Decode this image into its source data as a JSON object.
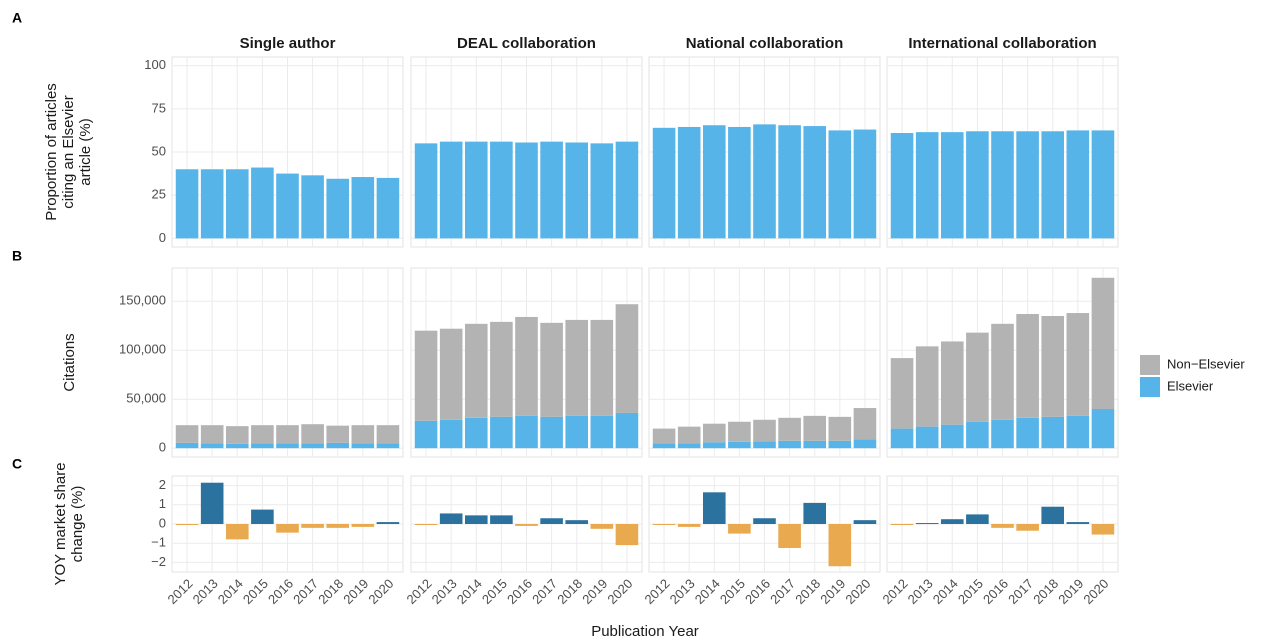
{
  "chart_data": [
    {
      "type": "bar",
      "panel": "A",
      "ylabel": [
        "Proportion of articles",
        "citing an Elsevier",
        "article (%)"
      ],
      "facet_titles": [
        "Single author",
        "DEAL collaboration",
        "National collaboration",
        "International collaboration"
      ],
      "color": "#56b4e9",
      "ylim": [
        -5,
        105
      ],
      "yticks": [
        0,
        25,
        50,
        75,
        100
      ],
      "grid": true,
      "facets": [
        {
          "values": [
            40,
            40,
            40,
            41,
            37.5,
            36.5,
            34.5,
            35.5,
            35
          ]
        },
        {
          "values": [
            55,
            56,
            56,
            56,
            55.5,
            56,
            55.5,
            55,
            56
          ]
        },
        {
          "values": [
            64,
            64.5,
            65.5,
            64.5,
            66,
            65.5,
            65,
            62.5,
            63
          ]
        },
        {
          "values": [
            61,
            61.5,
            61.5,
            62,
            62,
            62,
            62,
            62.5,
            62.5
          ]
        }
      ]
    },
    {
      "type": "stacked",
      "panel": "B",
      "ylabel": [
        "Citations"
      ],
      "ylim": [
        -9000,
        184000
      ],
      "grid": true,
      "yticks": [
        0,
        {
          "value": 50000,
          "label": "50,000"
        },
        {
          "value": 100000,
          "label": "100,000"
        },
        {
          "value": 150000,
          "label": "150,000"
        }
      ],
      "legend_names": [
        "Non−Elsevier",
        "Elsevier"
      ],
      "legend_colors": [
        "#b3b3b3",
        "#56b4e9"
      ],
      "facets": [
        {
          "series": [
            {
              "values": [
                18000,
                18500,
                18000,
                18500,
                18500,
                19500,
                17500,
                18500,
                18500
              ]
            },
            {
              "values": [
                5500,
                5000,
                4500,
                5000,
                5000,
                5000,
                5500,
                5000,
                5000
              ]
            }
          ]
        },
        {
          "series": [
            {
              "values": [
                92000,
                93000,
                96000,
                97000,
                101000,
                96000,
                98000,
                98000,
                111000
              ]
            },
            {
              "values": [
                28000,
                29000,
                31000,
                32000,
                33000,
                32000,
                33000,
                33000,
                36000
              ]
            }
          ]
        },
        {
          "series": [
            {
              "values": [
                15000,
                17000,
                19000,
                20500,
                22000,
                23500,
                25500,
                24500,
                32000
              ]
            },
            {
              "values": [
                5000,
                5000,
                6000,
                6500,
                7000,
                7500,
                7500,
                7500,
                9000
              ]
            }
          ]
        },
        {
          "series": [
            {
              "values": [
                72000,
                82000,
                85000,
                91000,
                98000,
                106000,
                103000,
                105000,
                134000
              ]
            },
            {
              "values": [
                20000,
                22000,
                24000,
                27000,
                29000,
                31000,
                32000,
                33000,
                40000
              ]
            }
          ]
        }
      ]
    },
    {
      "type": "diverging",
      "panel": "C",
      "ylabel": [
        "YOY market share",
        "change (%)"
      ],
      "xlabel": "Publication Year",
      "categories": [
        "2012",
        "2013",
        "2014",
        "2015",
        "2016",
        "2017",
        "2018",
        "2019",
        "2020"
      ],
      "positive_color": "#2c729e",
      "negative_color": "#e9a94f",
      "ylim": [
        -2.5,
        2.5
      ],
      "grid": true,
      "yticks": [
        {
          "value": -2,
          "label": "−2"
        },
        {
          "value": -1,
          "label": "−1"
        },
        0,
        1,
        2
      ],
      "facets": [
        {
          "values": [
            -0.05,
            2.15,
            -0.8,
            0.75,
            -0.45,
            -0.2,
            -0.2,
            -0.15,
            0.1
          ]
        },
        {
          "values": [
            -0.05,
            0.55,
            0.45,
            0.45,
            -0.1,
            0.3,
            0.2,
            -0.25,
            -1.1
          ]
        },
        {
          "values": [
            -0.05,
            -0.15,
            1.65,
            -0.5,
            0.3,
            -1.25,
            1.1,
            -2.2,
            0.2
          ]
        },
        {
          "values": [
            -0.05,
            0.05,
            0.25,
            0.5,
            -0.2,
            -0.35,
            0.9,
            0.1,
            -0.55
          ]
        }
      ]
    }
  ]
}
